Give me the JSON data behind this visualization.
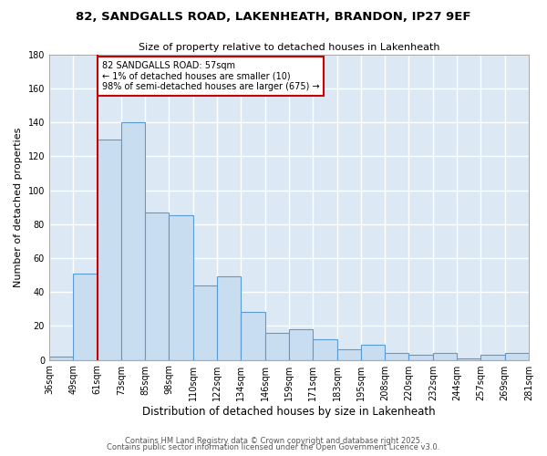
{
  "title": "82, SANDGALLS ROAD, LAKENHEATH, BRANDON, IP27 9EF",
  "subtitle": "Size of property relative to detached houses in Lakenheath",
  "xlabel": "Distribution of detached houses by size in Lakenheath",
  "ylabel": "Number of detached properties",
  "bins": [
    "36sqm",
    "49sqm",
    "61sqm",
    "73sqm",
    "85sqm",
    "98sqm",
    "110sqm",
    "122sqm",
    "134sqm",
    "146sqm",
    "159sqm",
    "171sqm",
    "183sqm",
    "195sqm",
    "208sqm",
    "220sqm",
    "232sqm",
    "244sqm",
    "257sqm",
    "269sqm",
    "281sqm"
  ],
  "values": [
    2,
    51,
    130,
    140,
    87,
    85,
    44,
    49,
    28,
    16,
    18,
    12,
    6,
    9,
    4,
    3,
    4,
    1,
    3,
    4
  ],
  "bar_color": "#c9ddf0",
  "bar_edge_color": "#5b9bd5",
  "vline_x_index": 2,
  "vline_color": "#cc0000",
  "ylim": [
    0,
    180
  ],
  "yticks": [
    0,
    20,
    40,
    60,
    80,
    100,
    120,
    140,
    160,
    180
  ],
  "annotation_line1": "82 SANDGALLS ROAD: 57sqm",
  "annotation_line2": "← 1% of detached houses are smaller (10)",
  "annotation_line3": "98% of semi-detached houses are larger (675) →",
  "annotation_box_edgecolor": "#cc0000",
  "footer1": "Contains HM Land Registry data © Crown copyright and database right 2025.",
  "footer2": "Contains public sector information licensed under the Open Government Licence v3.0.",
  "plot_bg_color": "#dce9f5",
  "grid_color": "#ffffff",
  "fig_bg_color": "#ffffff"
}
